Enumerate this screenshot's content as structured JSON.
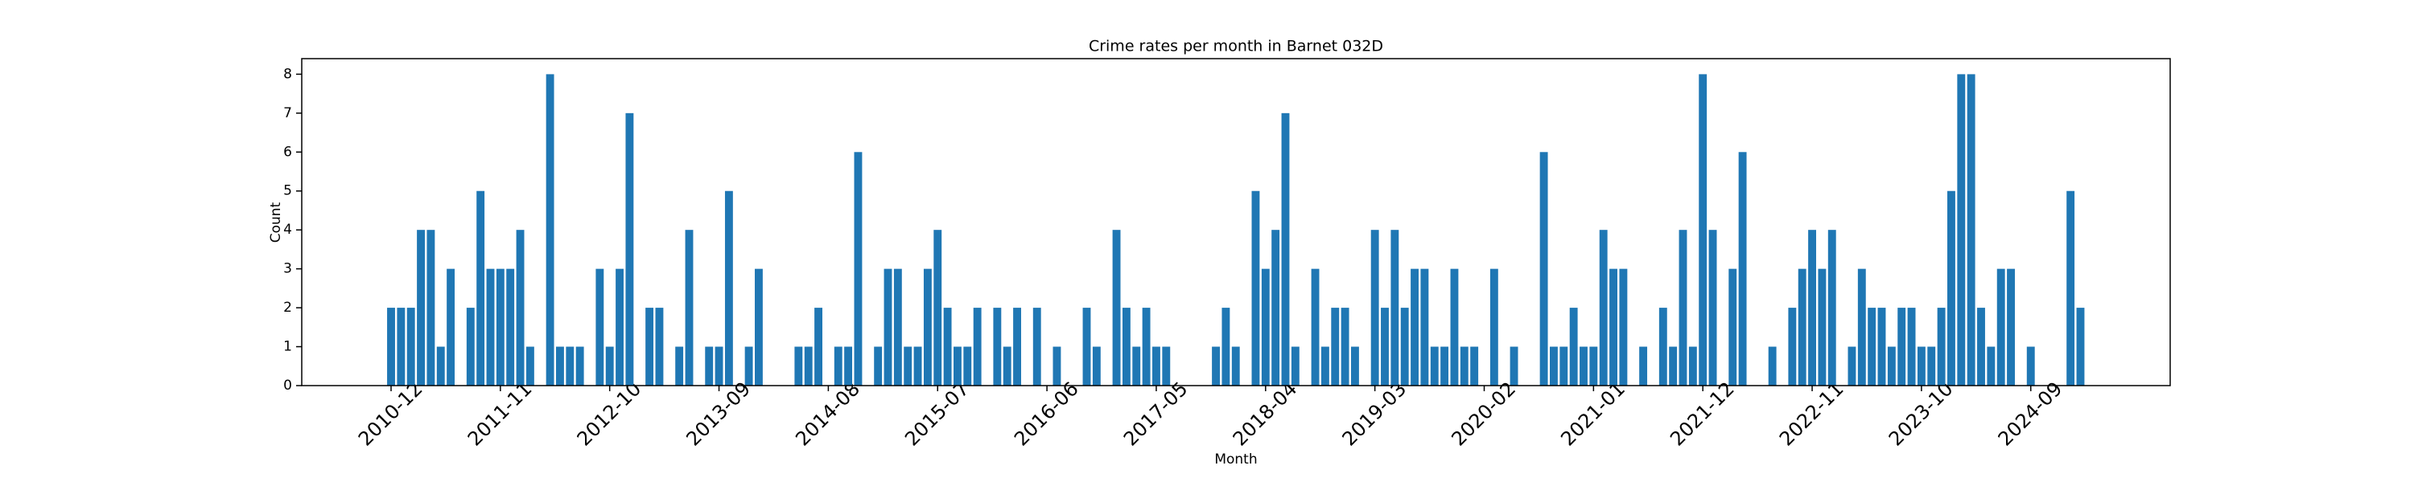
{
  "chart_data": {
    "type": "bar",
    "title": "Crime rates per month in Barnet 032D",
    "x_label": "Month",
    "y_label": "Count",
    "color": "#1f77b4",
    "categories": [
      "2010-12",
      null,
      null,
      null,
      null,
      null,
      null,
      null,
      null,
      null,
      null,
      "2011-11",
      null,
      null,
      null,
      null,
      null,
      null,
      null,
      null,
      null,
      null,
      "2012-10",
      null,
      null,
      null,
      null,
      null,
      null,
      null,
      null,
      null,
      null,
      "2013-09",
      null,
      null,
      null,
      null,
      null,
      null,
      null,
      null,
      null,
      null,
      "2014-08",
      null,
      null,
      null,
      null,
      null,
      null,
      null,
      null,
      null,
      null,
      "2015-07",
      null,
      null,
      null,
      null,
      null,
      null,
      null,
      null,
      null,
      null,
      "2016-06",
      null,
      null,
      null,
      null,
      null,
      null,
      null,
      null,
      null,
      null,
      "2017-05",
      null,
      null,
      null,
      null,
      null,
      null,
      null,
      null,
      null,
      null,
      "2018-04",
      null,
      null,
      null,
      null,
      null,
      null,
      null,
      null,
      null,
      null,
      "2019-03",
      null,
      null,
      null,
      null,
      null,
      null,
      null,
      null,
      null,
      null,
      "2020-02",
      null,
      null,
      null,
      null,
      null,
      null,
      null,
      null,
      null,
      null,
      "2021-01",
      null,
      null,
      null,
      null,
      null,
      null,
      null,
      null,
      null,
      null,
      "2021-12",
      null,
      null,
      null,
      null,
      null,
      null,
      null,
      null,
      null,
      null,
      "2022-11",
      null,
      null,
      null,
      null,
      null,
      null,
      null,
      null,
      null,
      null,
      "2023-10",
      null,
      null,
      null,
      null,
      null,
      null,
      null,
      null,
      null,
      null,
      "2024-09",
      null,
      null,
      null,
      null,
      null
    ],
    "values": [
      2,
      2,
      2,
      4,
      4,
      1,
      3,
      0,
      2,
      5,
      3,
      3,
      3,
      4,
      1,
      0,
      8,
      1,
      1,
      1,
      0,
      3,
      1,
      3,
      7,
      0,
      2,
      2,
      0,
      1,
      4,
      0,
      1,
      1,
      5,
      0,
      1,
      3,
      0,
      0,
      0,
      1,
      1,
      2,
      0,
      1,
      1,
      6,
      0,
      1,
      3,
      3,
      1,
      1,
      3,
      4,
      2,
      1,
      1,
      2,
      0,
      2,
      1,
      2,
      0,
      2,
      0,
      1,
      0,
      0,
      2,
      1,
      0,
      4,
      2,
      1,
      2,
      1,
      1,
      0,
      0,
      0,
      0,
      1,
      2,
      1,
      0,
      5,
      3,
      4,
      7,
      1,
      0,
      3,
      1,
      2,
      2,
      1,
      0,
      4,
      2,
      4,
      2,
      3,
      3,
      1,
      1,
      3,
      1,
      1,
      0,
      3,
      0,
      1,
      0,
      0,
      6,
      1,
      1,
      2,
      1,
      1,
      4,
      3,
      3,
      0,
      1,
      0,
      2,
      1,
      4,
      1,
      8,
      4,
      0,
      3,
      6,
      0,
      0,
      1,
      0,
      2,
      3,
      4,
      3,
      4,
      0,
      1,
      3,
      2,
      2,
      1,
      2,
      2,
      1,
      1,
      2,
      5,
      8,
      8,
      2,
      1,
      3,
      3,
      0,
      1,
      0,
      0,
      0,
      5,
      2
    ],
    "ylim": [
      0,
      8.4
    ],
    "yticks": [
      0,
      1,
      2,
      3,
      4,
      5,
      6,
      7,
      8
    ]
  }
}
